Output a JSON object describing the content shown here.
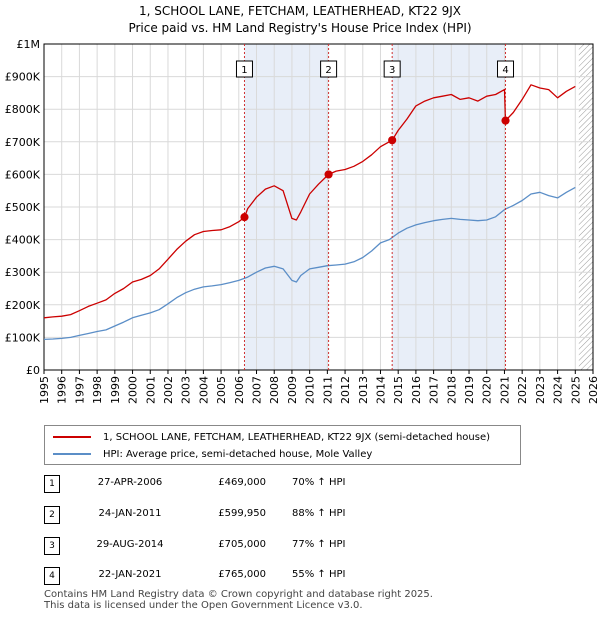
{
  "titles": {
    "line1": "1, SCHOOL LANE, FETCHAM, LEATHERHEAD, KT22 9JX",
    "line2": "Price paid vs. HM Land Registry's House Price Index (HPI)"
  },
  "legend": {
    "property_label": "1, SCHOOL LANE, FETCHAM, LEATHERHEAD, KT22 9JX (semi-detached house)",
    "hpi_label": "HPI: Average price, semi-detached house, Mole Valley"
  },
  "colors": {
    "property": "#cc0000",
    "hpi": "#5b8ec7",
    "shade": "#e8eef8",
    "marker_line": "#d03030"
  },
  "sales": [
    {
      "num": "1",
      "date": "27-APR-2006",
      "price": "£469,000",
      "hpi": "70% ↑ HPI"
    },
    {
      "num": "2",
      "date": "24-JAN-2011",
      "price": "£599,950",
      "hpi": "88% ↑ HPI"
    },
    {
      "num": "3",
      "date": "29-AUG-2014",
      "price": "£705,000",
      "hpi": "77% ↑ HPI"
    },
    {
      "num": "4",
      "date": "22-JAN-2021",
      "price": "£765,000",
      "hpi": "55% ↑ HPI"
    }
  ],
  "footer": {
    "line1": "Contains HM Land Registry data © Crown copyright and database right 2025.",
    "line2": "This data is licensed under the Open Government Licence v3.0."
  },
  "chart_data": {
    "type": "line",
    "title": "1, SCHOOL LANE, FETCHAM, LEATHERHEAD, KT22 9JX",
    "subtitle": "Price paid vs. HM Land Registry's House Price Index (HPI)",
    "xlabel": "",
    "ylabel": "",
    "xlim": [
      1995,
      2026
    ],
    "ylim": [
      0,
      1000000
    ],
    "x_ticks": [
      1995,
      1996,
      1997,
      1998,
      1999,
      2000,
      2001,
      2002,
      2003,
      2004,
      2005,
      2006,
      2007,
      2008,
      2009,
      2010,
      2011,
      2012,
      2013,
      2014,
      2015,
      2016,
      2017,
      2018,
      2019,
      2020,
      2021,
      2022,
      2023,
      2024,
      2025,
      2026
    ],
    "y_ticks": [
      {
        "value": 0,
        "label": "£0"
      },
      {
        "value": 100000,
        "label": "£100K"
      },
      {
        "value": 200000,
        "label": "£200K"
      },
      {
        "value": 300000,
        "label": "£300K"
      },
      {
        "value": 400000,
        "label": "£400K"
      },
      {
        "value": 500000,
        "label": "£500K"
      },
      {
        "value": 600000,
        "label": "£600K"
      },
      {
        "value": 700000,
        "label": "£700K"
      },
      {
        "value": 800000,
        "label": "£800K"
      },
      {
        "value": 900000,
        "label": "£900K"
      },
      {
        "value": 1000000,
        "label": "£1M"
      }
    ],
    "grid": true,
    "shaded_periods": [
      [
        2006.32,
        2011.07
      ],
      [
        2014.66,
        2021.06
      ]
    ],
    "future_hatch_from": 2025.2,
    "sale_markers": [
      {
        "label": "1",
        "x": 2006.32,
        "y": 469000
      },
      {
        "label": "2",
        "x": 2011.07,
        "y": 599950
      },
      {
        "label": "3",
        "x": 2014.66,
        "y": 705000
      },
      {
        "label": "4",
        "x": 2021.06,
        "y": 765000
      }
    ],
    "series": [
      {
        "name": "1, SCHOOL LANE, FETCHAM, LEATHERHEAD, KT22 9JX (semi-detached house)",
        "color": "#cc0000",
        "x": [
          1995.0,
          1995.5,
          1996.0,
          1996.5,
          1997.0,
          1997.5,
          1998.0,
          1998.5,
          1999.0,
          1999.5,
          2000.0,
          2000.5,
          2001.0,
          2001.5,
          2002.0,
          2002.5,
          2003.0,
          2003.5,
          2004.0,
          2004.5,
          2005.0,
          2005.5,
          2006.0,
          2006.32,
          2006.5,
          2007.0,
          2007.5,
          2008.0,
          2008.5,
          2009.0,
          2009.25,
          2009.5,
          2010.0,
          2010.5,
          2011.07,
          2011.5,
          2012.0,
          2012.5,
          2013.0,
          2013.5,
          2014.0,
          2014.66,
          2015.0,
          2015.5,
          2016.0,
          2016.5,
          2017.0,
          2017.5,
          2018.0,
          2018.5,
          2019.0,
          2019.5,
          2020.0,
          2020.5,
          2021.0,
          2021.06,
          2021.5,
          2022.0,
          2022.5,
          2023.0,
          2023.5,
          2024.0,
          2024.5,
          2025.0
        ],
        "y": [
          160000,
          163000,
          165000,
          170000,
          182000,
          195000,
          205000,
          215000,
          235000,
          250000,
          270000,
          278000,
          290000,
          310000,
          340000,
          370000,
          395000,
          415000,
          425000,
          428000,
          430000,
          440000,
          455000,
          469000,
          495000,
          530000,
          555000,
          565000,
          550000,
          465000,
          460000,
          485000,
          540000,
          570000,
          599950,
          610000,
          615000,
          625000,
          640000,
          660000,
          685000,
          705000,
          735000,
          770000,
          810000,
          825000,
          835000,
          840000,
          845000,
          830000,
          835000,
          825000,
          840000,
          845000,
          860000,
          765000,
          790000,
          830000,
          875000,
          865000,
          860000,
          835000,
          855000,
          870000
        ]
      },
      {
        "name": "HPI: Average price, semi-detached house, Mole Valley",
        "color": "#5b8ec7",
        "x": [
          1995.0,
          1995.5,
          1996.0,
          1996.5,
          1997.0,
          1997.5,
          1998.0,
          1998.5,
          1999.0,
          1999.5,
          2000.0,
          2000.5,
          2001.0,
          2001.5,
          2002.0,
          2002.5,
          2003.0,
          2003.5,
          2004.0,
          2004.5,
          2005.0,
          2005.5,
          2006.0,
          2006.5,
          2007.0,
          2007.5,
          2008.0,
          2008.5,
          2009.0,
          2009.25,
          2009.5,
          2010.0,
          2010.5,
          2011.0,
          2011.5,
          2012.0,
          2012.5,
          2013.0,
          2013.5,
          2014.0,
          2014.5,
          2015.0,
          2015.5,
          2016.0,
          2016.5,
          2017.0,
          2017.5,
          2018.0,
          2018.5,
          2019.0,
          2019.5,
          2020.0,
          2020.5,
          2021.0,
          2021.5,
          2022.0,
          2022.5,
          2023.0,
          2023.5,
          2024.0,
          2024.5,
          2025.0
        ],
        "y": [
          94000,
          95000,
          97000,
          100000,
          106000,
          112000,
          118000,
          123000,
          135000,
          147000,
          160000,
          168000,
          175000,
          185000,
          203000,
          222000,
          237000,
          248000,
          255000,
          258000,
          262000,
          268000,
          275000,
          285000,
          300000,
          313000,
          318000,
          310000,
          275000,
          270000,
          290000,
          310000,
          315000,
          320000,
          322000,
          325000,
          332000,
          345000,
          365000,
          390000,
          400000,
          420000,
          435000,
          445000,
          452000,
          458000,
          462000,
          465000,
          462000,
          460000,
          458000,
          460000,
          470000,
          492000,
          505000,
          520000,
          540000,
          545000,
          535000,
          528000,
          545000,
          560000
        ]
      }
    ]
  }
}
